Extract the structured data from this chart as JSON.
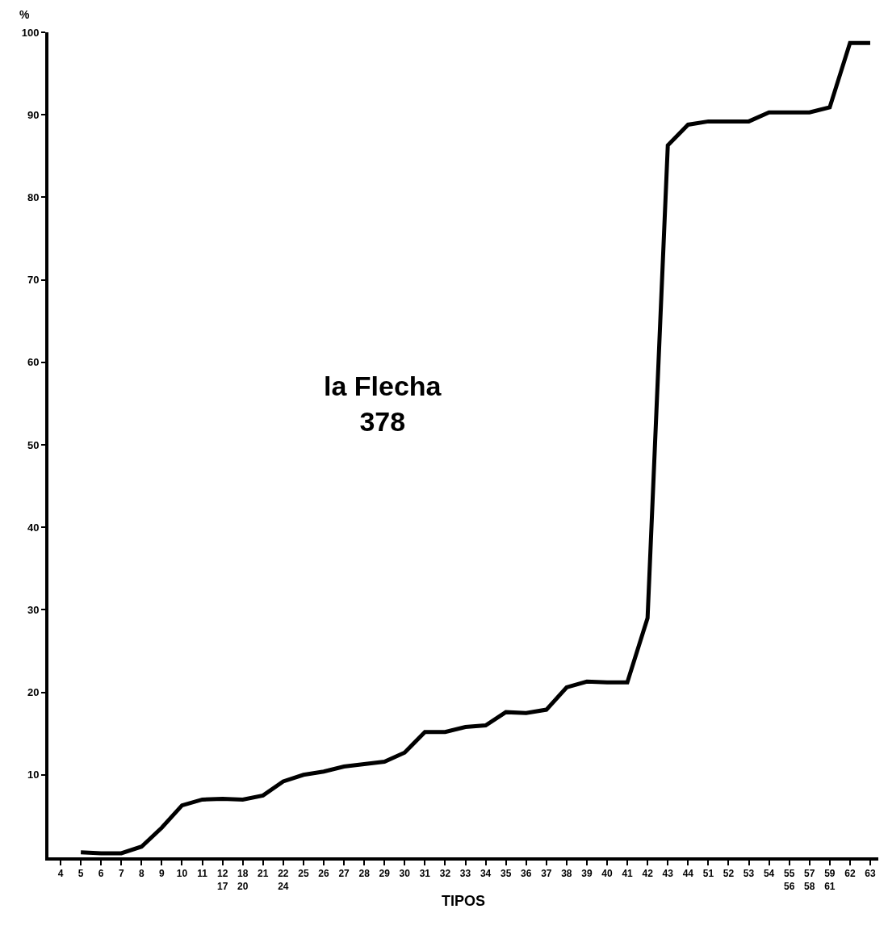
{
  "chart_data": {
    "type": "line",
    "xlabel": "TIPOS",
    "ylabel": "%",
    "annotations": [
      "la Flecha\n378"
    ],
    "categories": [
      "4",
      "5",
      "6",
      "7",
      "8",
      "9",
      "10",
      "11",
      "12\n17",
      "18\n20",
      "21",
      "22\n24",
      "25",
      "26",
      "27",
      "28",
      "29",
      "30",
      "31",
      "32",
      "33",
      "34",
      "35",
      "36",
      "37",
      "38",
      "39",
      "40",
      "41",
      "42",
      "43",
      "44",
      "51",
      "52",
      "53",
      "54",
      "55\n56",
      "57\n58",
      "59\n61",
      "62",
      "63"
    ],
    "series": [
      {
        "color": "#000000",
        "values": [
          null,
          0.6,
          0.5,
          0.5,
          1.3,
          3.6,
          6.3,
          7.0,
          7.1,
          7.0,
          7.5,
          9.2,
          10.0,
          10.4,
          11.0,
          11.3,
          11.6,
          12.7,
          15.2,
          15.2,
          15.8,
          16.0,
          17.6,
          17.5,
          17.9,
          20.6,
          21.3,
          21.2,
          21.2,
          29.0,
          86.3,
          88.8,
          89.2,
          89.2,
          89.2,
          90.3,
          90.3,
          90.3,
          90.9,
          98.7,
          98.7
        ]
      }
    ],
    "ylim": [
      0,
      100
    ],
    "yticks": [
      10,
      20,
      30,
      40,
      50,
      60,
      70,
      80,
      90,
      100
    ],
    "marker": "none",
    "line_style": "solid"
  }
}
